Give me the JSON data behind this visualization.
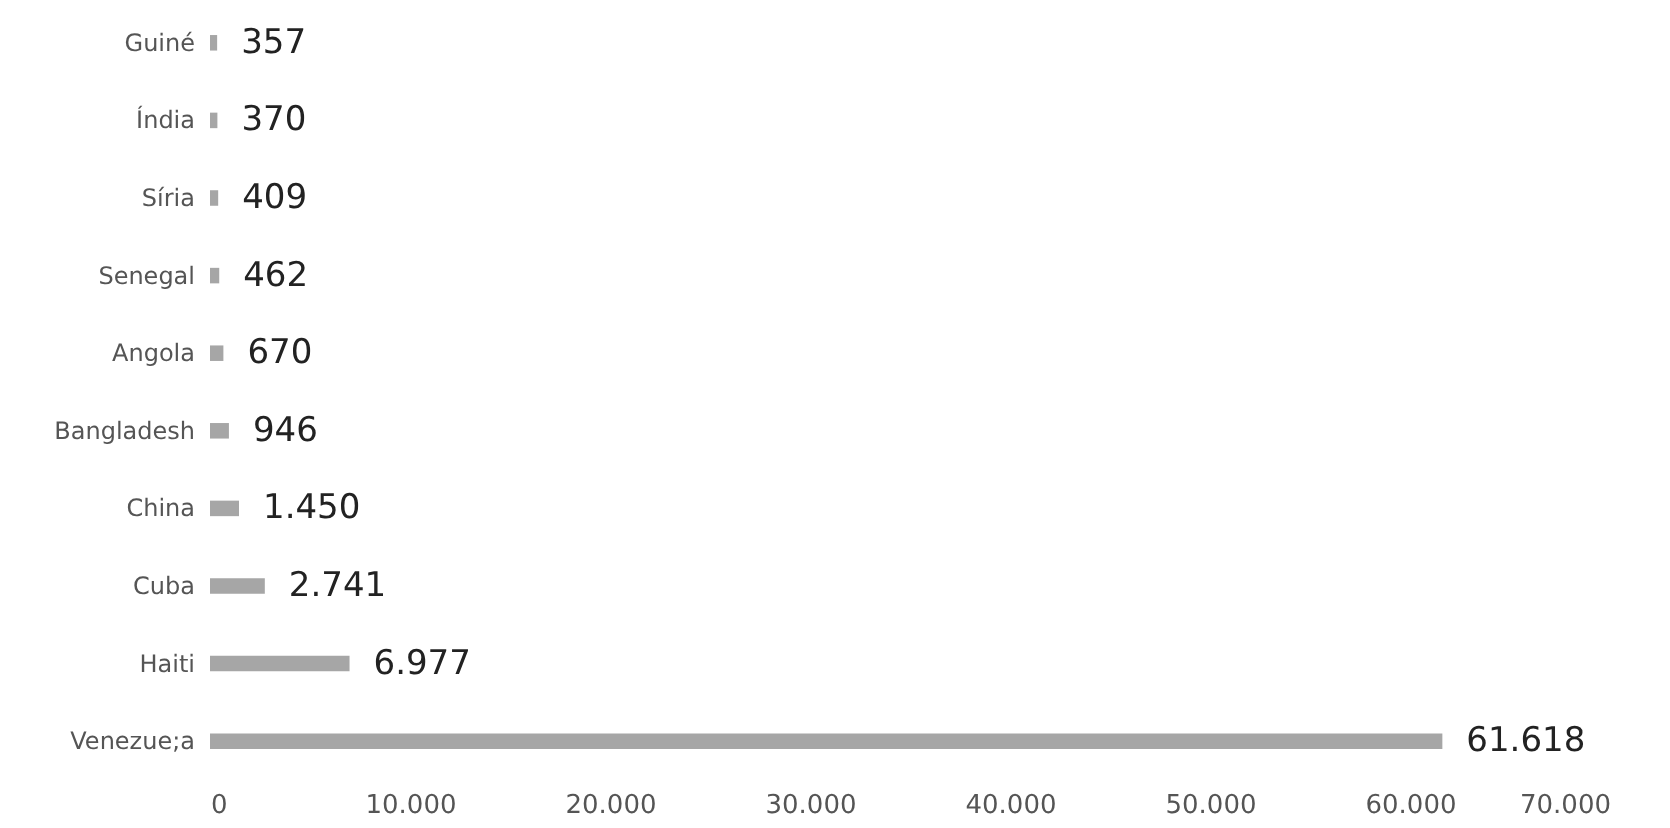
{
  "chart_data": {
    "type": "bar",
    "orientation": "horizontal",
    "categories": [
      "Guiné",
      "Índia",
      "Síria",
      "Senegal",
      "Angola",
      "Bangladesh",
      "China",
      "Cuba",
      "Haiti",
      "Venezue;a"
    ],
    "values": [
      357,
      370,
      409,
      462,
      670,
      946,
      1450,
      2741,
      6977,
      61618
    ],
    "value_labels": [
      "357",
      "370",
      "409",
      "462",
      "670",
      "946",
      "1.450",
      "2.741",
      "6.977",
      "61.618"
    ],
    "color": "#a6a6a6",
    "xlim": [
      0,
      70000
    ],
    "xticks": [
      0,
      {
        "value": 10000,
        "label": "10.000"
      },
      {
        "value": 20000,
        "label": "20.000"
      },
      {
        "value": 30000,
        "label": "30.000"
      },
      {
        "value": 40000,
        "label": "40.000"
      },
      {
        "value": 50000,
        "label": "50.000"
      },
      {
        "value": 60000,
        "label": "60.000"
      },
      {
        "value": 70000,
        "label": "70.000"
      }
    ],
    "grid": false
  }
}
